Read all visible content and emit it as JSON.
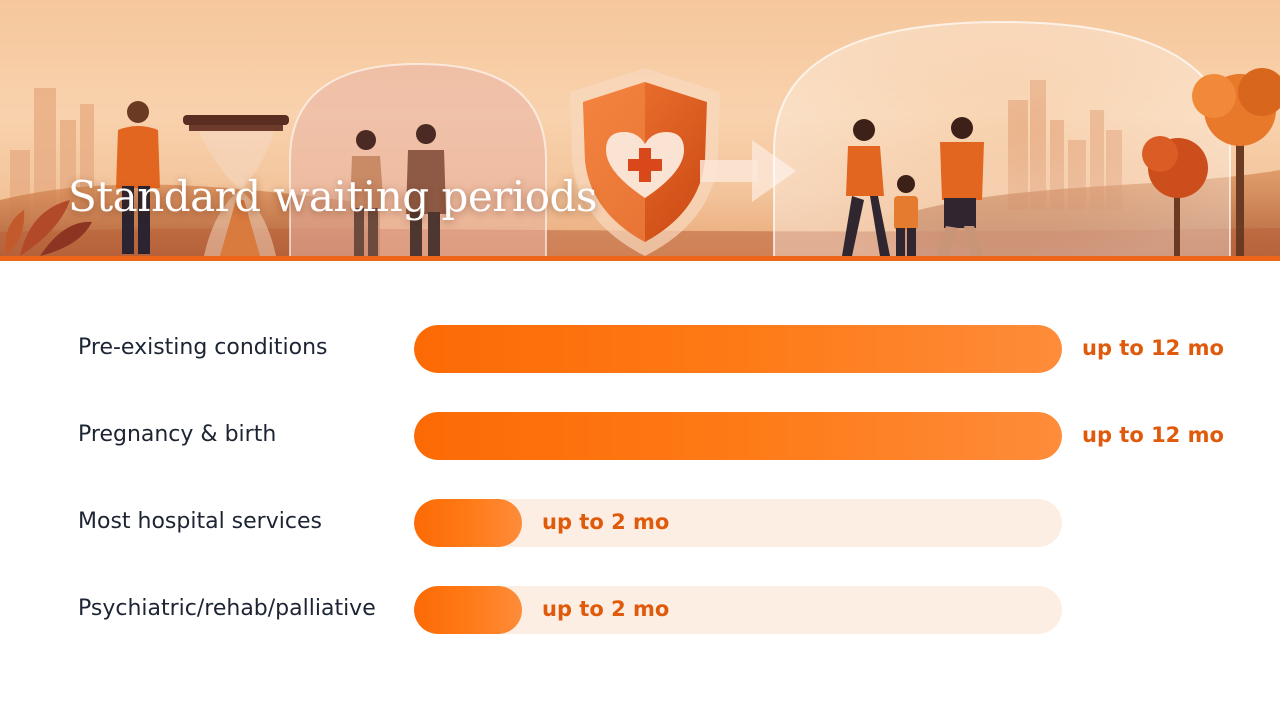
{
  "title": "Standard waiting periods",
  "colors": {
    "accent": "#ee6618",
    "bar_fill": "#fc6a05",
    "bar_track": "#fdeee3",
    "value_text": "#e05a0c",
    "label_text": "#1d2433"
  },
  "chart_data": {
    "type": "bar",
    "orientation": "horizontal",
    "title": "Standard waiting periods",
    "xlabel": "",
    "ylabel": "",
    "xlim": [
      0,
      12
    ],
    "grid": false,
    "categories": [
      "Pre-existing conditions",
      "Pregnancy & birth",
      "Most hospital services",
      "Psychiatric/rehab/palliative"
    ],
    "values": [
      12,
      12,
      2,
      2
    ],
    "data_labels": [
      "up to 12 mo",
      "up to 12 mo",
      "up to 2 mo",
      "up to 2 mo"
    ]
  }
}
